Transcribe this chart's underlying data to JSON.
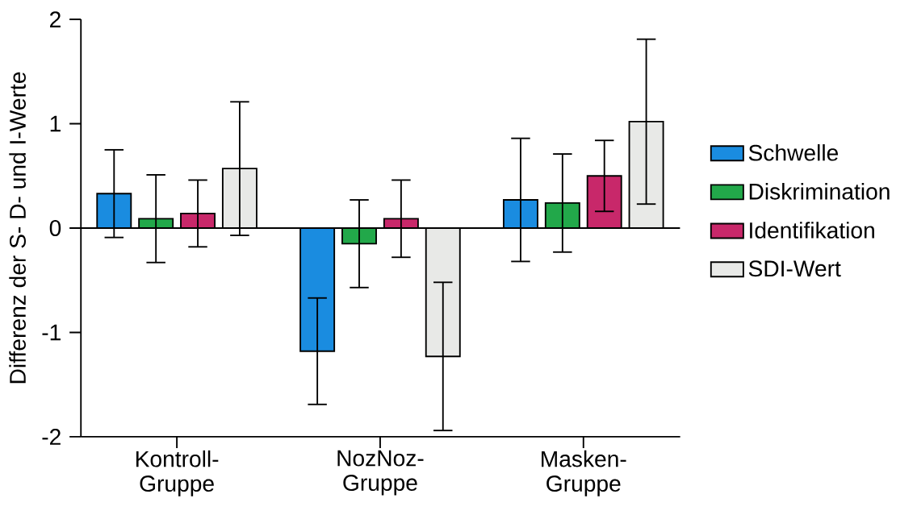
{
  "chart_data": {
    "type": "bar",
    "ylabel": "Differenz der S- D- und I-Werte",
    "categories": [
      "Kontroll- Gruppe",
      "NozNoz- Gruppe",
      "Masken- Gruppe"
    ],
    "series": [
      {
        "name": "Schwelle",
        "color": "#1a8ce0",
        "values": [
          0.33,
          -1.18,
          0.27
        ],
        "errors": [
          0.42,
          0.51,
          0.59
        ]
      },
      {
        "name": "Diskrimination",
        "color": "#22a84a",
        "values": [
          0.09,
          -0.15,
          0.24
        ],
        "errors": [
          0.42,
          0.42,
          0.47
        ]
      },
      {
        "name": "Identifikation",
        "color": "#c8286a",
        "values": [
          0.14,
          0.09,
          0.5
        ],
        "errors": [
          0.32,
          0.37,
          0.34
        ]
      },
      {
        "name": "SDI-Wert",
        "color": "#e8e9e7",
        "values": [
          0.57,
          -1.23,
          1.02
        ],
        "errors": [
          0.64,
          0.71,
          0.79
        ]
      }
    ],
    "ylim": [
      -2,
      2
    ],
    "yticks": [
      -2,
      -1,
      0,
      1,
      2
    ],
    "legend": "right",
    "ref_lines": [
      {
        "axis": "y",
        "value": 0,
        "color": "#000000"
      }
    ]
  }
}
